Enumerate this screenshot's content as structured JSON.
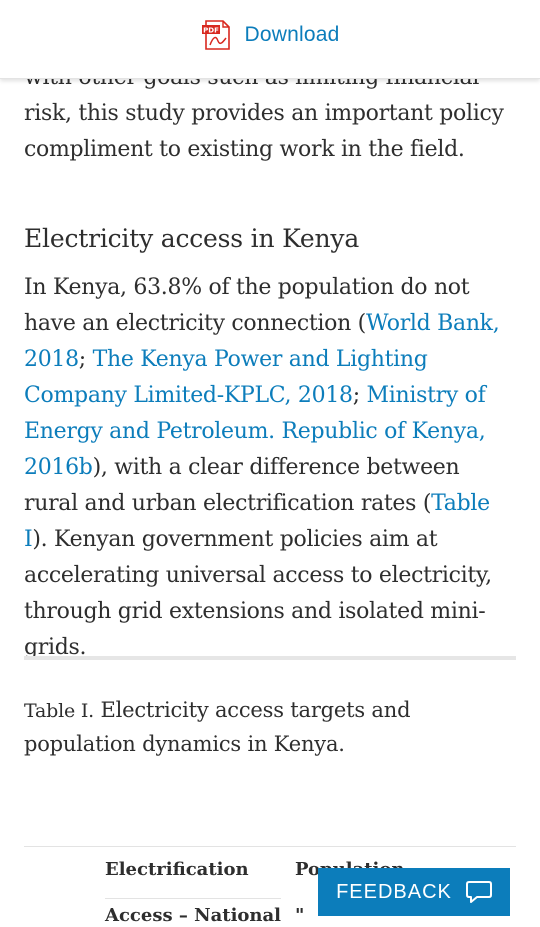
{
  "header": {
    "download_label": "Download",
    "icon": "pdf-icon",
    "icon_text": "PDF"
  },
  "article": {
    "intro_text": "with other goals such as limiting financial risk, this study provides an important policy compliment to existing work in the field.",
    "section_heading": "Electricity access in Kenya",
    "para": {
      "t1": "In Kenya, 63.8% of the population do not have an electricity connection (",
      "link1": "World Bank, 2018",
      "t2": "; ",
      "link2": "The Kenya Power and Lighting Company Limited-KPLC, 2018",
      "t3": "; ",
      "link3": "Ministry of Energy and Petroleum. Republic of Kenya, 2016b",
      "t4": "), with a clear difference between rural and urban electrification rates (",
      "link4": "Table I",
      "t5": "). Kenyan government policies aim at accelerating universal access to electricity, through grid extensions and isolated mini-grids."
    },
    "table_caption": {
      "label": "Table I.",
      "text": " Electricity access targets and population dynamics in Kenya."
    },
    "table": {
      "headers": [
        "Electrification",
        "Population"
      ],
      "first_row_partial": [
        "Access – National",
        "\""
      ]
    }
  },
  "feedback": {
    "label": "FEEDBACK",
    "icon": "speech-bubble-icon"
  },
  "colors": {
    "link": "#0c7dbb",
    "text": "#2e2e2e",
    "feedback_bg": "#0c7dbb",
    "pdf_red": "#d8281f"
  }
}
